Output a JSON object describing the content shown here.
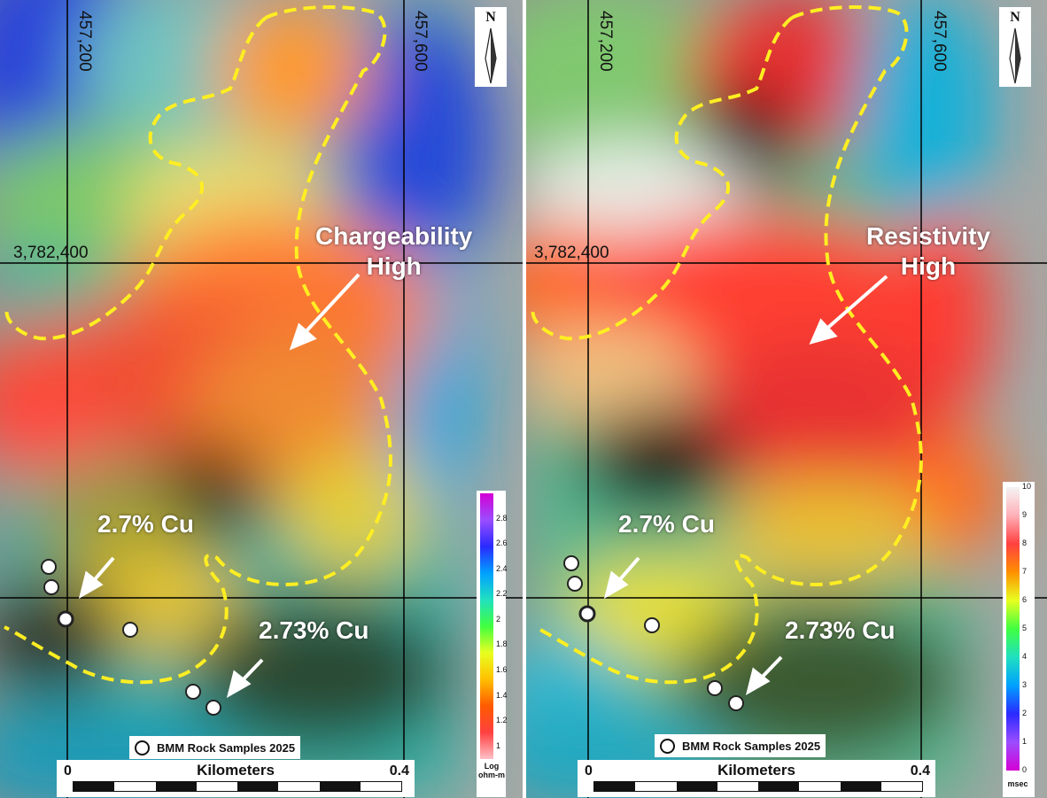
{
  "panels": [
    {
      "id": "chargeability",
      "grid": {
        "easting_1": "457,200",
        "easting_2": "457,600",
        "northing": "3,782,400"
      },
      "north_label": "N",
      "anomaly_label_line1": "Chargeability",
      "anomaly_label_line2": "High",
      "callout_1": "2.7% Cu",
      "callout_2": "2.73% Cu",
      "samples_legend": "BMM Rock Samples 2025",
      "scale": {
        "title": "Kilometers",
        "min": "0",
        "max": "0.4"
      },
      "color_legend": {
        "ticks": [
          "2.8",
          "2.6",
          "2.4",
          "2.2",
          "2",
          "1.8",
          "1.6",
          "1.4",
          "1.2",
          "1"
        ],
        "unit_line1": "Log",
        "unit_line2": "ohm-m",
        "colors_top_to_bottom": [
          "#d400d4",
          "#9b4dff",
          "#2a2aff",
          "#00a0ff",
          "#20e0c0",
          "#40ff40",
          "#e8ff20",
          "#ffc000",
          "#ff5a00",
          "#ff4040",
          "#ffc0c8"
        ]
      }
    },
    {
      "id": "resistivity",
      "grid": {
        "easting_1": "457,200",
        "easting_2": "457,600",
        "northing": "3,782,400"
      },
      "north_label": "N",
      "anomaly_label_line1": "Resistivity",
      "anomaly_label_line2": "High",
      "callout_1": "2.7% Cu",
      "callout_2": "2.73% Cu",
      "samples_legend": "BMM Rock Samples 2025",
      "scale": {
        "title": "Kilometers",
        "min": "0",
        "max": "0.4"
      },
      "color_legend": {
        "ticks": [
          "10",
          "9",
          "8",
          "7",
          "6",
          "5",
          "4",
          "3",
          "2",
          "1",
          "0"
        ],
        "unit_line1": "msec",
        "unit_line2": "",
        "colors_top_to_bottom": [
          "#f4f4f4",
          "#ffb0b8",
          "#ff4040",
          "#ff9000",
          "#e8ff20",
          "#40ff40",
          "#20e0c0",
          "#00a0ff",
          "#2a2aff",
          "#9b4dff",
          "#d400d4"
        ]
      }
    }
  ],
  "colors": {
    "boundary": "#ffee22",
    "callout_text": "#ffffff",
    "sample_marker": "#ffffff",
    "grid_line": "#000000"
  }
}
